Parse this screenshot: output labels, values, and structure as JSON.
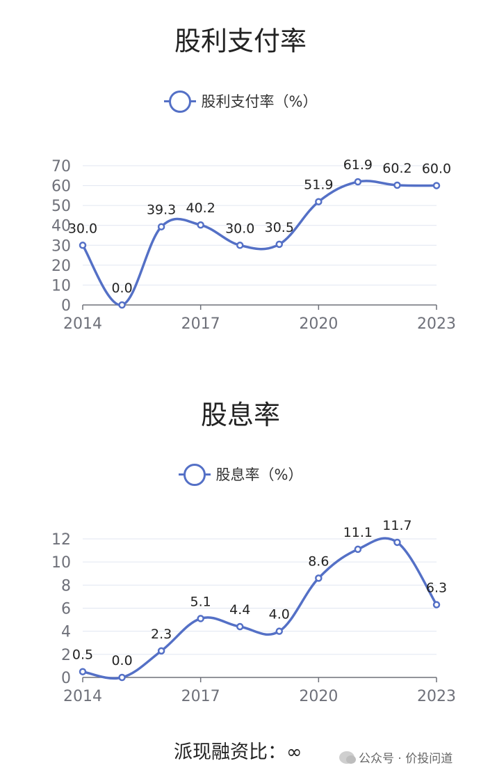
{
  "chart_data": [
    {
      "type": "line",
      "title": "股利支付率",
      "categories": [
        "2014",
        "2015",
        "2016",
        "2017",
        "2018",
        "2019",
        "2020",
        "2021",
        "2022",
        "2023"
      ],
      "x_tick_labels": [
        "2014",
        "2017",
        "2020",
        "2023"
      ],
      "series": [
        {
          "name": "股利支付率（%）",
          "values": [
            30.0,
            0.0,
            39.3,
            40.2,
            30.0,
            30.5,
            51.9,
            61.9,
            60.2,
            60.0
          ]
        }
      ],
      "data_labels": [
        "30.0",
        "0.0",
        "39.3",
        "40.2",
        "30.0",
        "30.5",
        "51.9",
        "61.9",
        "60.2",
        "60.0"
      ],
      "y_ticks": [
        "0",
        "10",
        "20",
        "30",
        "40",
        "50",
        "60",
        "70"
      ],
      "ylim": [
        0,
        70
      ],
      "grid": true,
      "legend": "top-center",
      "color": "#5470c6",
      "smooth": true
    },
    {
      "type": "line",
      "title": "股息率",
      "categories": [
        "2014",
        "2015",
        "2016",
        "2017",
        "2018",
        "2019",
        "2020",
        "2021",
        "2022",
        "2023"
      ],
      "x_tick_labels": [
        "2014",
        "2017",
        "2020",
        "2023"
      ],
      "series": [
        {
          "name": "股息率（%）",
          "values": [
            0.5,
            0.0,
            2.3,
            5.1,
            4.4,
            4.0,
            8.6,
            11.1,
            11.7,
            6.3
          ]
        }
      ],
      "data_labels": [
        "0.5",
        "0.0",
        "2.3",
        "5.1",
        "4.4",
        "4.0",
        "8.6",
        "11.1",
        "11.7",
        "6.3"
      ],
      "y_ticks": [
        "0",
        "2",
        "4",
        "6",
        "8",
        "10",
        "12"
      ],
      "ylim": [
        0,
        12
      ],
      "grid": true,
      "legend": "top-center",
      "color": "#5470c6",
      "smooth": true
    }
  ],
  "footer": {
    "label": "派现融资比：",
    "value": "∞"
  },
  "watermark": {
    "text": "公众号 · 价投问道"
  }
}
